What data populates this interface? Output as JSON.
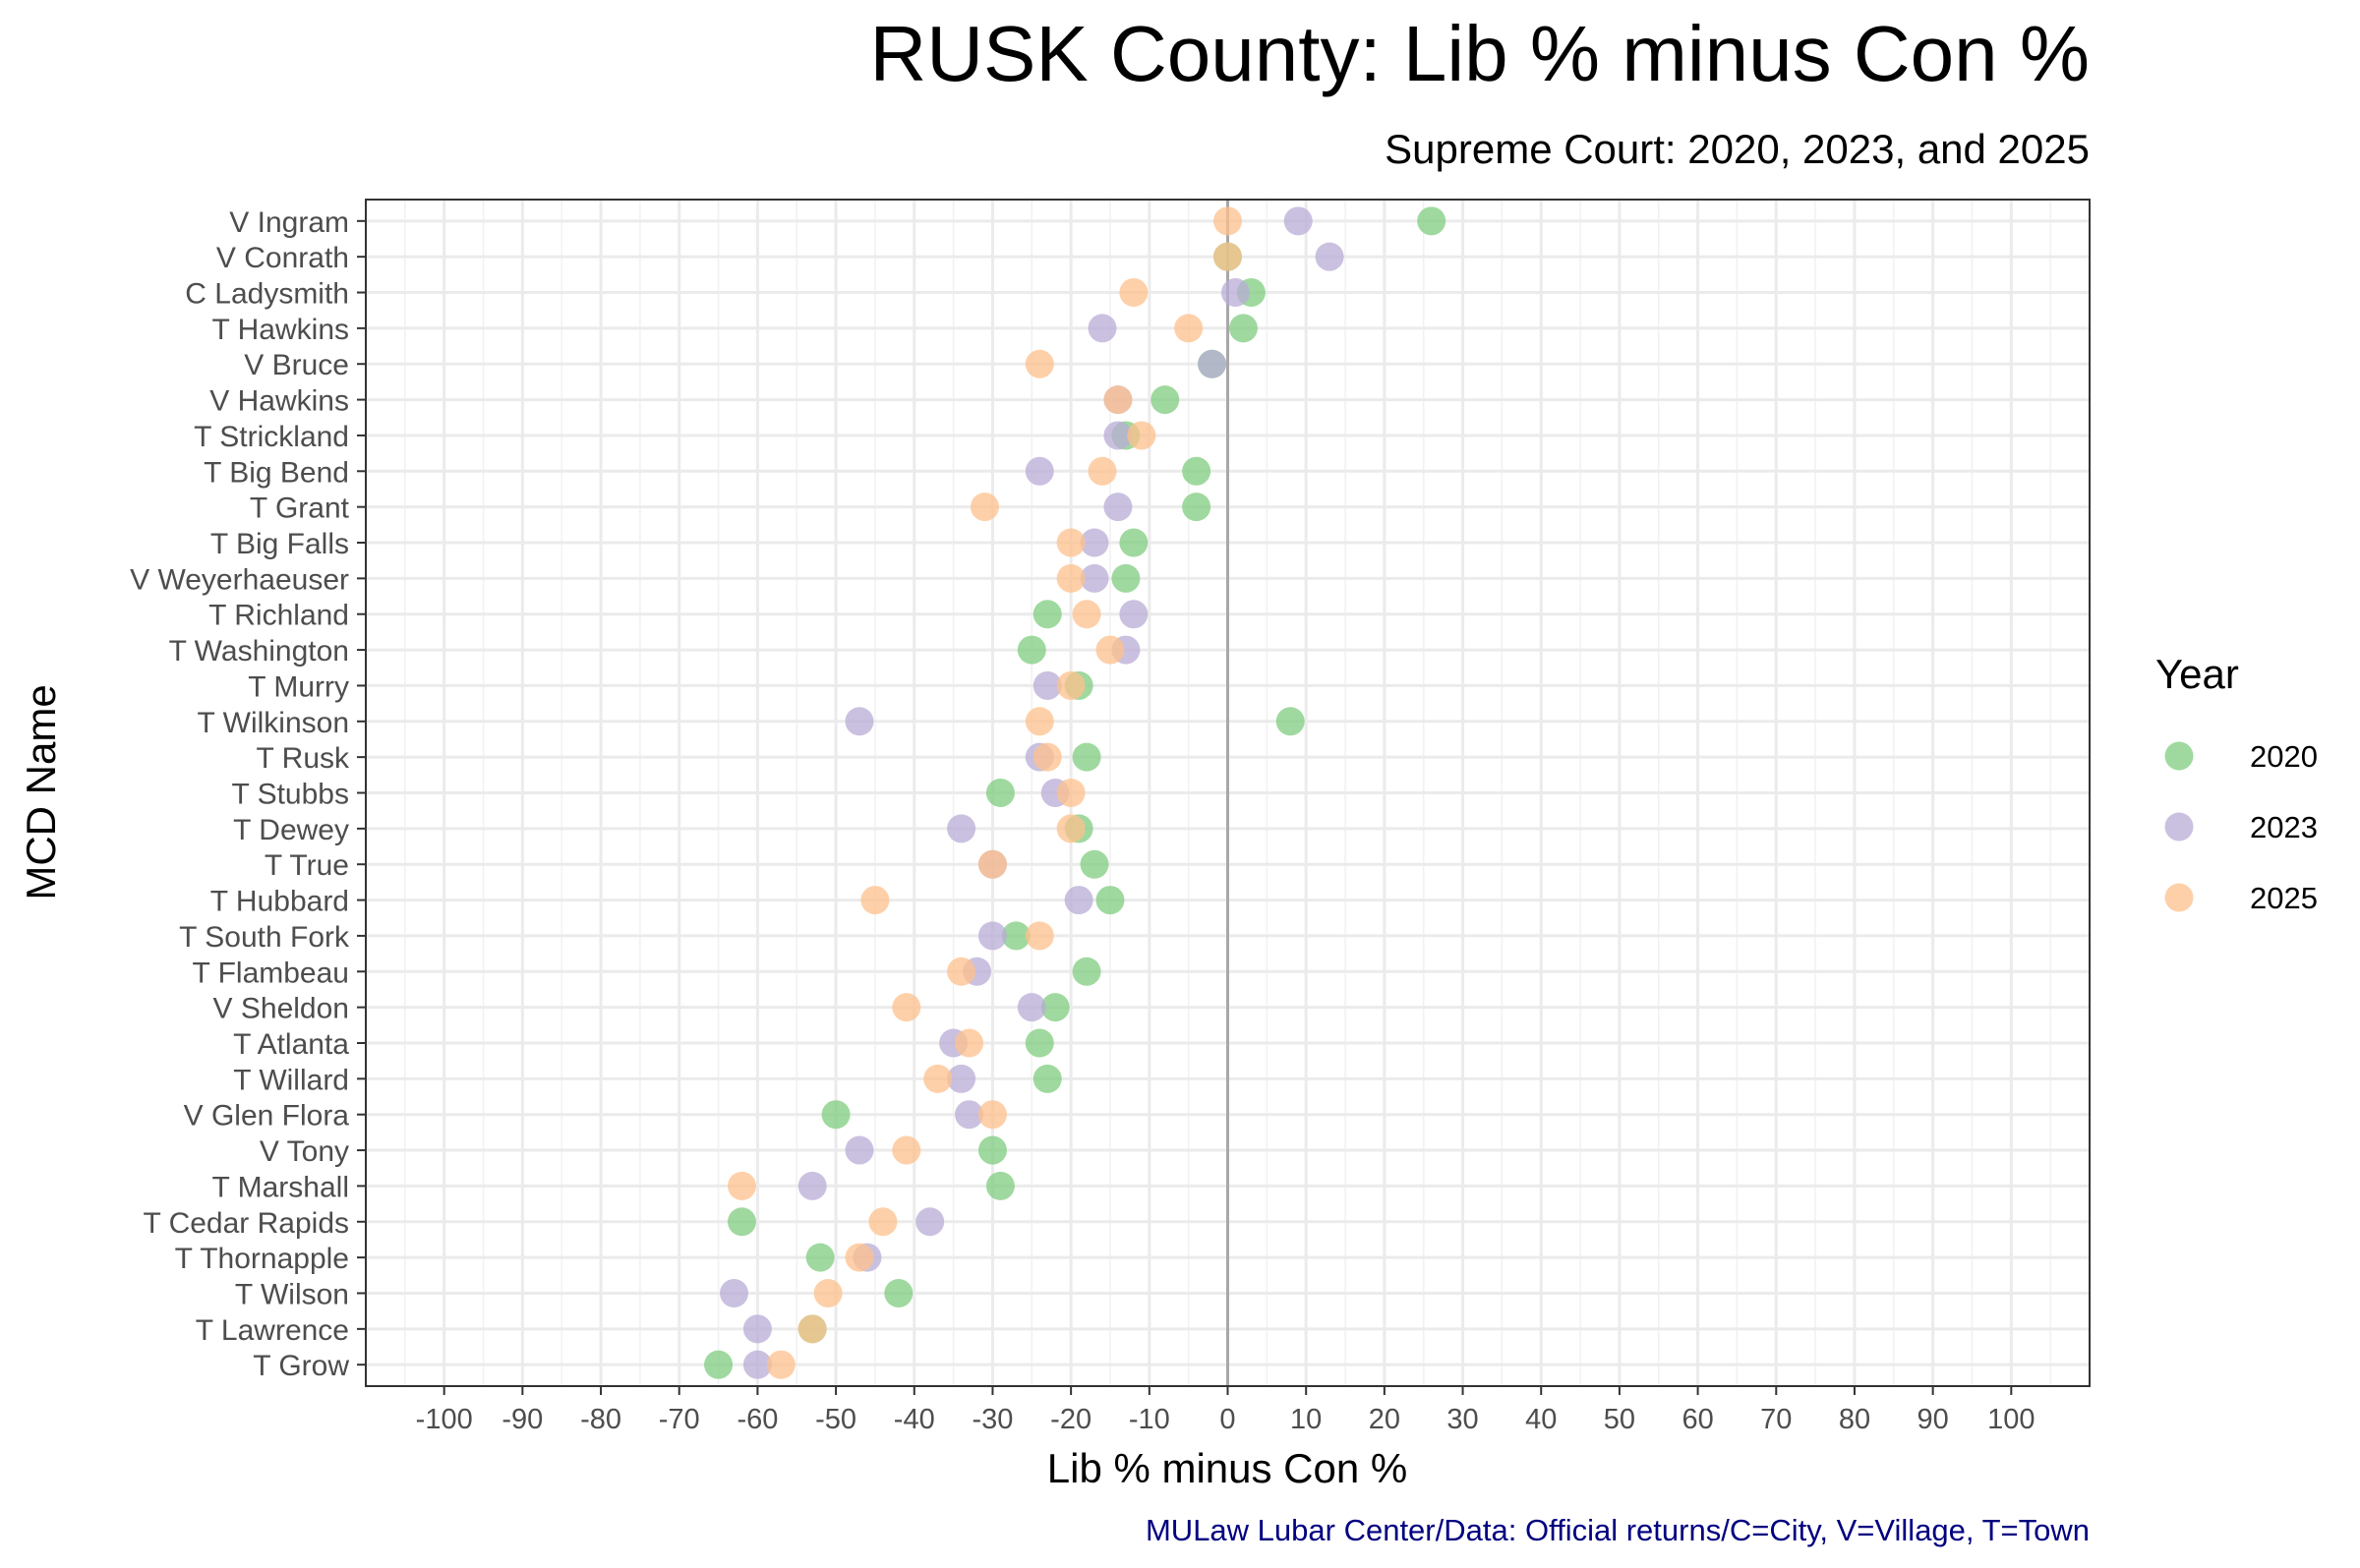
{
  "chart_data": {
    "type": "scatter",
    "title": "RUSK County: Lib % minus Con %",
    "subtitle": "Supreme Court: 2020, 2023, and 2025",
    "xlabel": "Lib % minus Con %",
    "ylabel": "MCD Name",
    "caption": "MULaw Lubar Center/Data: Official returns/C=City, V=Village, T=Town",
    "xlim": [
      -110,
      110
    ],
    "x_ticks": [
      -100,
      -90,
      -80,
      -70,
      -60,
      -50,
      -40,
      -30,
      -20,
      -10,
      0,
      10,
      20,
      30,
      40,
      50,
      60,
      70,
      80,
      90,
      100
    ],
    "grid": true,
    "reference_line_x": 0,
    "legend": {
      "title": "Year",
      "position": "right"
    },
    "categories": [
      "V Ingram",
      "V Conrath",
      "C Ladysmith",
      "T Hawkins",
      "V Bruce",
      "V Hawkins",
      "T Strickland",
      "T Big Bend",
      "T Grant",
      "T Big Falls",
      "V Weyerhaeuser",
      "T Richland",
      "T Washington",
      "T Murry",
      "T Wilkinson",
      "T Rusk",
      "T Stubbs",
      "T Dewey",
      "T True",
      "T Hubbard",
      "T South Fork",
      "T Flambeau",
      "V Sheldon",
      "T Atlanta",
      "T Willard",
      "V Glen Flora",
      "V Tony",
      "T Marshall",
      "T Cedar Rapids",
      "T Thornapple",
      "T Wilson",
      "T Lawrence",
      "T Grow"
    ],
    "series": [
      {
        "name": "2020",
        "color": "#7fcc7f",
        "values": [
          26,
          0,
          3,
          2,
          -2,
          -8,
          -13,
          -4,
          -4,
          -12,
          -13,
          -23,
          -25,
          -19,
          8,
          -18,
          -29,
          -19,
          -17,
          -15,
          -27,
          -18,
          -22,
          -24,
          -23,
          -50,
          -30,
          -29,
          -62,
          -52,
          -42,
          -53,
          -65
        ]
      },
      {
        "name": "2023",
        "color": "#b8acd6",
        "values": [
          9,
          13,
          1,
          -16,
          -2,
          -14,
          -14,
          -24,
          -14,
          -17,
          -17,
          -12,
          -13,
          -23,
          -47,
          -24,
          -22,
          -34,
          -30,
          -19,
          -30,
          -32,
          -25,
          -35,
          -34,
          -33,
          -47,
          -53,
          -38,
          -46,
          -63,
          -60,
          -60
        ]
      },
      {
        "name": "2025",
        "color": "#fdc08c",
        "values": [
          0,
          0,
          -12,
          -5,
          -24,
          -14,
          -11,
          -16,
          -31,
          -20,
          -20,
          -18,
          -15,
          -20,
          -24,
          -23,
          -20,
          -20,
          -30,
          -45,
          -24,
          -34,
          -41,
          -33,
          -37,
          -30,
          -41,
          -62,
          -44,
          -47,
          -51,
          -53,
          -57
        ]
      }
    ]
  }
}
